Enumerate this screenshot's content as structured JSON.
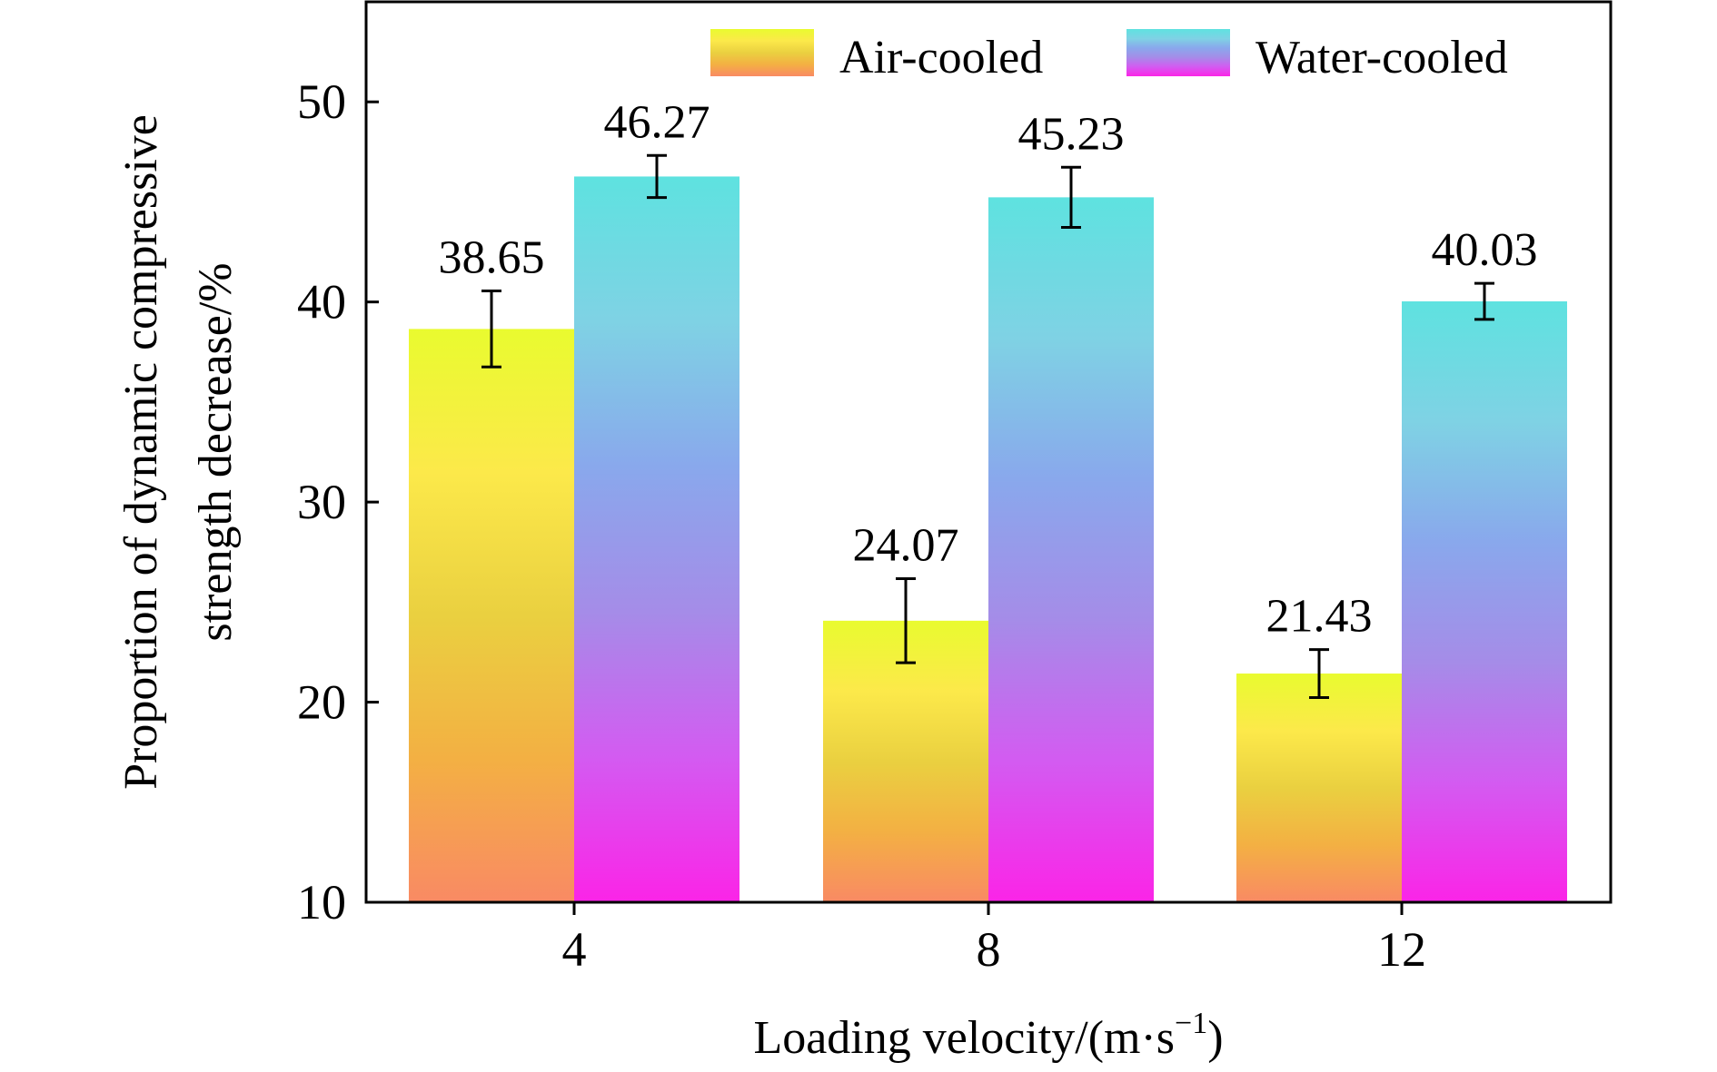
{
  "chart_data": {
    "type": "bar",
    "title": "",
    "xlabel": "Loading velocity/(m·s",
    "xlabel_sup": "−1",
    "xlabel_tail": ")",
    "ylabel_lines": [
      "Proportion of dynamic compressive",
      "strength decrease/%"
    ],
    "categories": [
      "4",
      "8",
      "12"
    ],
    "ylim": [
      10,
      55
    ],
    "yticks": [
      10,
      20,
      30,
      40,
      50
    ],
    "legend_position": "top-right",
    "series": [
      {
        "name": "Air-cooled",
        "values": [
          38.65,
          24.07,
          21.43
        ],
        "error": [
          1.9,
          2.1,
          1.2
        ],
        "data_labels": [
          "38.65",
          "24.07",
          "21.43"
        ],
        "gradient": [
          "#f98a64",
          "#f3b043",
          "#ead040",
          "#fce94a",
          "#e9fb2f"
        ]
      },
      {
        "name": "Water-cooled",
        "values": [
          46.27,
          45.23,
          40.03
        ],
        "error": [
          1.05,
          1.5,
          0.9
        ],
        "data_labels": [
          "46.27",
          "45.23",
          "40.03"
        ],
        "gradient": [
          "#fb24e7",
          "#d35bf1",
          "#a58ce8",
          "#89a8ec",
          "#7fd2e4",
          "#5ee2e0"
        ]
      }
    ]
  }
}
